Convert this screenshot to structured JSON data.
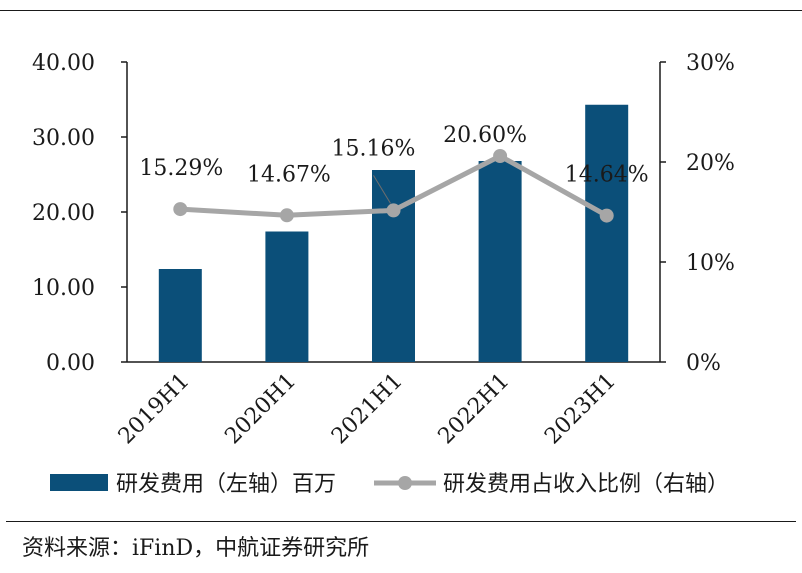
{
  "chart_data": {
    "type": "bar+line",
    "categories": [
      "2019H1",
      "2020H1",
      "2021H1",
      "2022H1",
      "2023H1"
    ],
    "series": [
      {
        "name": "研发费用（左轴）百万",
        "type": "bar",
        "axis": "left",
        "values": [
          12.4,
          17.4,
          25.6,
          26.8,
          34.3
        ],
        "color": "#0b4f79"
      },
      {
        "name": "研发费用占收入比例（右轴）",
        "type": "line",
        "axis": "right",
        "values": [
          15.29,
          14.67,
          15.16,
          20.6,
          14.64
        ],
        "labels": [
          "15.29%",
          "14.67%",
          "15.16%",
          "20.60%",
          "14.64%"
        ],
        "color": "#a6a6a6"
      }
    ],
    "left_axis": {
      "ylim": [
        0,
        40
      ],
      "ticks": [
        "0.00",
        "10.00",
        "20.00",
        "30.00",
        "40.00"
      ]
    },
    "right_axis": {
      "ylim": [
        0,
        30
      ],
      "ticks": [
        "0%",
        "10%",
        "20%",
        "30%"
      ]
    },
    "grid": false,
    "legend_position": "bottom"
  },
  "source": "资料来源：iFinD，中航证券研究所"
}
